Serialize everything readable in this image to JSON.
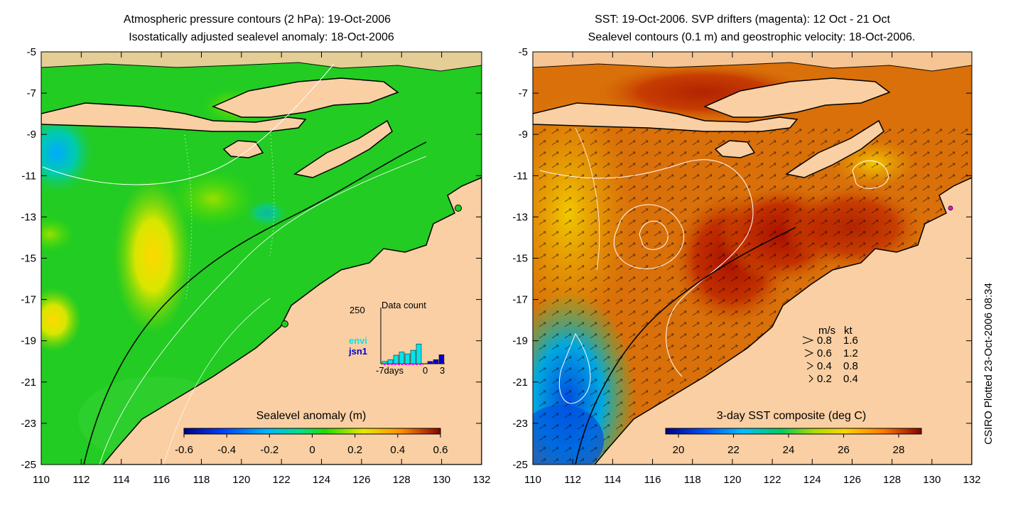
{
  "left_panel": {
    "title_line1": "Atmospheric pressure contours (2 hPa): 19-Oct-2006",
    "title_line2": "Isostatically adjusted sealevel anomaly: 18-Oct-2006",
    "colorbar_label": "Sealevel anomaly (m)",
    "colorbar_ticks": [
      "-0.6",
      "-0.4",
      "-0.2",
      "0",
      "0.2",
      "0.4",
      "0.6"
    ],
    "inset": {
      "label_250": "250",
      "title": "Data count",
      "legend_envi": "envi",
      "legend_jsn1": "jsn1",
      "xlabel_left": "-7days",
      "xlabel_zero": "0",
      "xlabel_right": "3",
      "colors": {
        "envi": "#00e5ee",
        "jsn1": "#0000cd"
      },
      "envi_counts": [
        10,
        18,
        38,
        52,
        44,
        60,
        88
      ],
      "jsn1_counts": [
        0,
        0,
        0,
        0,
        0,
        0,
        0,
        0,
        10,
        18,
        40
      ]
    }
  },
  "right_panel": {
    "title_line1": "SST: 19-Oct-2006. SVP drifters (magenta): 12 Oct - 21 Oct",
    "title_line2": "Sealevel contours (0.1 m) and geostrophic velocity: 18-Oct-2006.",
    "colorbar_label": "3-day SST composite (deg C)",
    "colorbar_ticks": [
      "20",
      "22",
      "24",
      "26",
      "28"
    ],
    "velocity_legend": {
      "header_ms": "m/s",
      "header_kt": "kt",
      "rows": [
        {
          "ms": "0.8",
          "kt": "1.6"
        },
        {
          "ms": "0.6",
          "kt": "1.2"
        },
        {
          "ms": "0.4",
          "kt": "0.8"
        },
        {
          "ms": "0.2",
          "kt": "0.4"
        }
      ]
    }
  },
  "axes": {
    "y_ticks": [
      "-5",
      "-7",
      "-9",
      "-11",
      "-13",
      "-15",
      "-17",
      "-19",
      "-21",
      "-23",
      "-25"
    ],
    "x_ticks": [
      "110",
      "112",
      "114",
      "116",
      "118",
      "120",
      "122",
      "124",
      "126",
      "128",
      "130",
      "132"
    ]
  },
  "credit": "CSIRO Plotted 23-Oct-2006 08:34",
  "colors": {
    "land": "#f9cfa3",
    "ocean_left": "#22cc22",
    "ocean_right": "#d9700a"
  }
}
